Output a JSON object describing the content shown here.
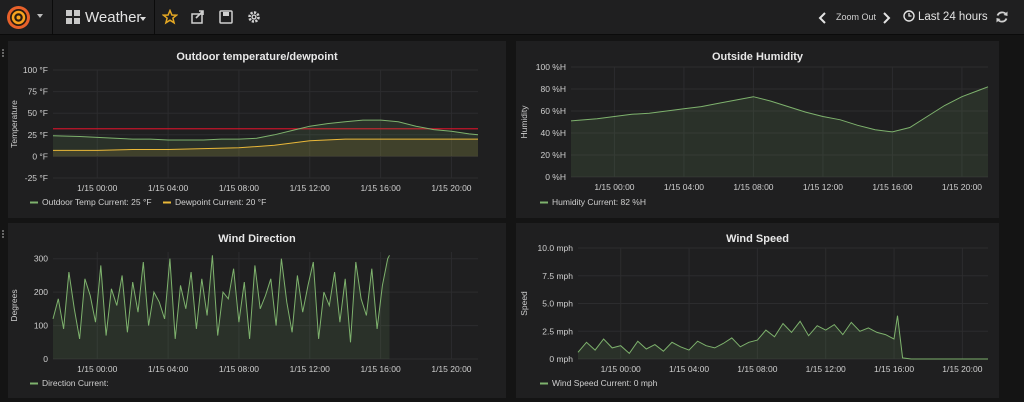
{
  "header": {
    "dashboard_title": "Weather",
    "zoom_out": "Zoom Out",
    "time_range": "Last 24 hours",
    "icons": [
      "grafana-logo-icon",
      "dashboard-grid-icon",
      "star-icon",
      "share-icon",
      "save-icon",
      "gear-icon",
      "chevron-left-icon",
      "chevron-right-icon",
      "clock-icon",
      "refresh-icon"
    ]
  },
  "colors": {
    "green": "#7eb26d",
    "yellow": "#eab839",
    "threshold": "#c4162a",
    "star": "#e5a823"
  },
  "panels": {
    "temperature": {
      "title": "Outdoor temperature/dewpoint",
      "chart_data": {
        "type": "line",
        "title": "Outdoor temperature/dewpoint",
        "ylabel": "Temperature",
        "yticks": [
          "100 °F",
          "75 °F",
          "50 °F",
          "25 °F",
          "0 °F",
          "-25 °F"
        ],
        "ylim": [
          -25,
          100
        ],
        "xticks": [
          "1/15 00:00",
          "1/15 04:00",
          "1/15 08:00",
          "1/15 12:00",
          "1/15 16:00",
          "1/15 20:00"
        ],
        "xlim": [
          -2.5,
          21.5
        ],
        "threshold": 32,
        "series": [
          {
            "name": "Outdoor Temp",
            "legend": "Outdoor Temp  Current: 25 °F",
            "color": "#7eb26d",
            "x": [
              -2.5,
              -1,
              0,
              1,
              2,
              3,
              4,
              5,
              6,
              7,
              8,
              9,
              10,
              11,
              12,
              13,
              14,
              15,
              16,
              17,
              18,
              19,
              20,
              21,
              21.5
            ],
            "y": [
              24,
              23,
              22,
              21,
              20,
              20,
              19,
              19,
              19,
              20,
              20,
              21,
              25,
              30,
              35,
              38,
              40,
              42,
              42,
              40,
              35,
              31,
              29,
              26,
              25
            ]
          },
          {
            "name": "Dewpoint",
            "legend": "Dewpoint  Current: 20 °F",
            "color": "#eab839",
            "x": [
              -2.5,
              0,
              2,
              4,
              6,
              8,
              10,
              12,
              14,
              16,
              18,
              20,
              21.5
            ],
            "y": [
              7,
              7,
              8,
              8,
              9,
              10,
              13,
              18,
              20,
              20,
              20,
              20,
              20
            ]
          }
        ]
      }
    },
    "humidity": {
      "title": "Outside Humidity",
      "chart_data": {
        "type": "line",
        "title": "Outside Humidity",
        "ylabel": "Humidity",
        "yticks": [
          "100 %H",
          "80 %H",
          "60 %H",
          "40 %H",
          "20 %H",
          "0 %H"
        ],
        "ylim": [
          0,
          100
        ],
        "xticks": [
          "1/15 00:00",
          "1/15 04:00",
          "1/15 08:00",
          "1/15 12:00",
          "1/15 16:00",
          "1/15 20:00"
        ],
        "xlim": [
          -2.5,
          21.5
        ],
        "series": [
          {
            "name": "Humidity",
            "legend": "Humidity  Current: 82 %H",
            "color": "#7eb26d",
            "x": [
              -2.5,
              -1,
              0,
              1,
              2,
              3,
              4,
              5,
              6,
              7,
              8,
              9,
              10,
              11,
              12,
              13,
              14,
              15,
              16,
              17,
              18,
              19,
              20,
              21,
              21.5
            ],
            "y": [
              51,
              53,
              55,
              57,
              58,
              60,
              62,
              64,
              67,
              70,
              73,
              69,
              64,
              59,
              55,
              52,
              47,
              43,
              41,
              45,
              55,
              65,
              73,
              79,
              82
            ]
          }
        ]
      }
    },
    "direction": {
      "title": "Wind Direction",
      "chart_data": {
        "type": "line",
        "title": "Wind Direction",
        "ylabel": "Degrees",
        "yticks": [
          "300",
          "200",
          "100",
          "0"
        ],
        "ylim": [
          0,
          320
        ],
        "xticks": [
          "1/15 00:00",
          "1/15 04:00",
          "1/15 08:00",
          "1/15 12:00",
          "1/15 16:00",
          "1/15 20:00"
        ],
        "xlim": [
          -2.5,
          21.5
        ],
        "series": [
          {
            "name": "Direction",
            "legend": "Direction  Current:",
            "color": "#7eb26d",
            "x": [
              -2.5,
              -2.2,
              -1.9,
              -1.6,
              -1.3,
              -1,
              -0.7,
              -0.4,
              -0.1,
              0.2,
              0.5,
              0.8,
              1.1,
              1.4,
              1.7,
              2,
              2.3,
              2.6,
              2.9,
              3.2,
              3.5,
              3.8,
              4.1,
              4.4,
              4.7,
              5,
              5.3,
              5.6,
              5.9,
              6.2,
              6.5,
              6.8,
              7.1,
              7.4,
              7.7,
              8,
              8.3,
              8.6,
              8.9,
              9.2,
              9.5,
              9.8,
              10.1,
              10.4,
              10.7,
              11,
              11.3,
              11.6,
              11.9,
              12.2,
              12.5,
              12.8,
              13.1,
              13.4,
              13.7,
              14,
              14.3,
              14.6,
              14.9,
              15.2,
              15.5,
              15.8,
              16.1,
              16.4,
              16.5
            ],
            "y": [
              120,
              180,
              90,
              260,
              150,
              60,
              240,
              190,
              110,
              280,
              70,
              210,
              160,
              250,
              80,
              230,
              140,
              290,
              100,
              200,
              170,
              120,
              300,
              60,
              220,
              150,
              260,
              90,
              240,
              130,
              310,
              70,
              200,
              180,
              270,
              110,
              230,
              60,
              280,
              150,
              190,
              240,
              100,
              300,
              170,
              80,
              250,
              140,
              220,
              290,
              60,
              200,
              160,
              260,
              110,
              240,
              50,
              290,
              180,
              130,
              270,
              90,
              220,
              300,
              310
            ]
          }
        ]
      }
    },
    "speed": {
      "title": "Wind Speed",
      "chart_data": {
        "type": "line",
        "title": "Wind Speed",
        "ylabel": "Speed",
        "yticks": [
          "10.0 mph",
          "7.5 mph",
          "5.0 mph",
          "2.5 mph",
          "0 mph"
        ],
        "ylim": [
          0,
          10
        ],
        "xticks": [
          "1/15 00:00",
          "1/15 04:00",
          "1/15 08:00",
          "1/15 12:00",
          "1/15 16:00",
          "1/15 20:00"
        ],
        "xlim": [
          -2.5,
          21.5
        ],
        "series": [
          {
            "name": "Wind Speed",
            "legend": "Wind Speed  Current: 0 mph",
            "color": "#7eb26d",
            "x": [
              -2.5,
              -2,
              -1.5,
              -1,
              -0.5,
              0,
              0.5,
              1,
              1.5,
              2,
              2.5,
              3,
              3.5,
              4,
              4.5,
              5,
              5.5,
              6,
              6.5,
              7,
              7.5,
              8,
              8.5,
              9,
              9.5,
              10,
              10.5,
              11,
              11.5,
              12,
              12.5,
              13,
              13.5,
              14,
              14.5,
              15,
              15.5,
              16,
              16.2,
              16.5,
              17,
              18,
              19,
              20,
              21,
              21.5
            ],
            "y": [
              0.6,
              1.5,
              0.8,
              1.8,
              1.0,
              1.2,
              0.5,
              1.6,
              0.9,
              1.3,
              0.7,
              1.5,
              1.1,
              0.8,
              1.6,
              1.2,
              1.0,
              1.4,
              1.9,
              1.1,
              1.5,
              1.7,
              2.6,
              2.0,
              3.2,
              2.4,
              3.4,
              2.1,
              3.0,
              2.6,
              3.1,
              2.2,
              3.3,
              2.5,
              2.8,
              2.4,
              2.2,
              1.8,
              3.9,
              0.1,
              0,
              0,
              0,
              0,
              0,
              0
            ]
          }
        ]
      }
    }
  }
}
